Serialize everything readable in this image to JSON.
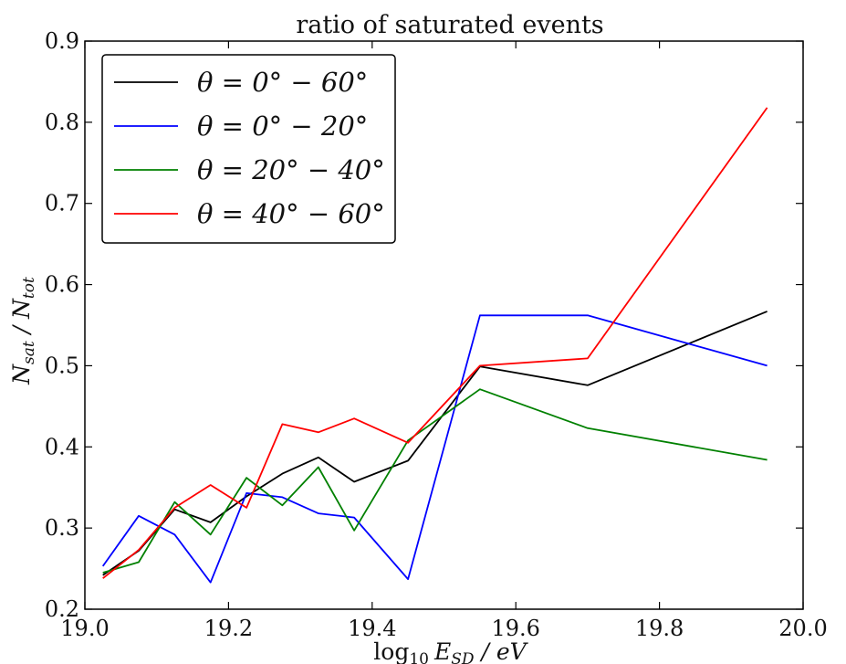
{
  "chart_data": {
    "type": "line",
    "title": "ratio of saturated events",
    "xlabel": "log10 E_SD / eV",
    "ylabel": "N_sat / N_tot",
    "xlim": [
      19.0,
      20.0
    ],
    "ylim": [
      0.2,
      0.9
    ],
    "xticks": [
      "19.0",
      "19.2",
      "19.4",
      "19.6",
      "19.8",
      "20.0"
    ],
    "yticks": [
      "0.2",
      "0.3",
      "0.4",
      "0.5",
      "0.6",
      "0.7",
      "0.8",
      "0.9"
    ],
    "grid": false,
    "legend_position": "top-left",
    "series": [
      {
        "name": "θ = 0° − 60°",
        "color": "#000000",
        "x": [
          19.025,
          19.075,
          19.125,
          19.175,
          19.225,
          19.275,
          19.325,
          19.375,
          19.45,
          19.55,
          19.7,
          19.95
        ],
        "y": [
          0.242,
          0.272,
          0.323,
          0.307,
          0.339,
          0.367,
          0.387,
          0.357,
          0.383,
          0.499,
          0.476,
          0.567
        ]
      },
      {
        "name": "θ = 0° − 20°",
        "color": "#0000ff",
        "x": [
          19.025,
          19.075,
          19.125,
          19.175,
          19.225,
          19.275,
          19.325,
          19.375,
          19.45,
          19.55,
          19.7,
          19.95
        ],
        "y": [
          0.253,
          0.315,
          0.292,
          0.233,
          0.343,
          0.338,
          0.318,
          0.313,
          0.237,
          0.562,
          0.562,
          0.5
        ]
      },
      {
        "name": "θ = 20° − 40°",
        "color": "#008000",
        "x": [
          19.025,
          19.075,
          19.125,
          19.175,
          19.225,
          19.275,
          19.325,
          19.375,
          19.45,
          19.55,
          19.7,
          19.95
        ],
        "y": [
          0.245,
          0.258,
          0.332,
          0.292,
          0.362,
          0.328,
          0.375,
          0.297,
          0.408,
          0.471,
          0.423,
          0.384
        ]
      },
      {
        "name": "θ = 40° − 60°",
        "color": "#ff0000",
        "x": [
          19.025,
          19.075,
          19.125,
          19.175,
          19.225,
          19.275,
          19.325,
          19.375,
          19.45,
          19.55,
          19.7,
          19.95
        ],
        "y": [
          0.238,
          0.273,
          0.325,
          0.353,
          0.325,
          0.428,
          0.418,
          0.435,
          0.405,
          0.5,
          0.509,
          0.818
        ]
      }
    ]
  }
}
